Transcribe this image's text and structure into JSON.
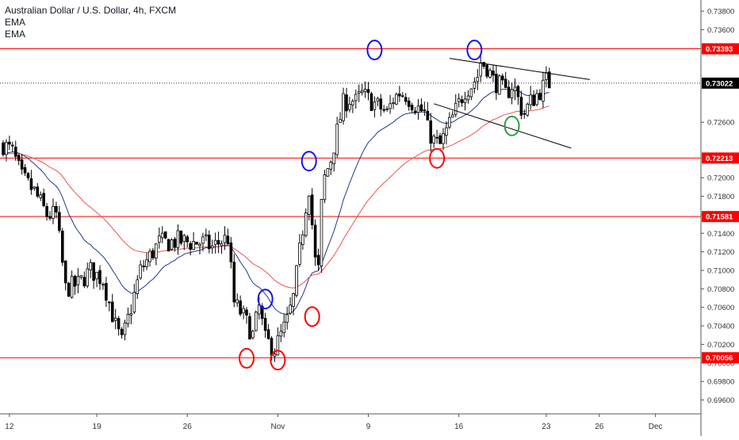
{
  "legend": {
    "title": "Australian Dollar / U.S. Dollar, 4h, FXCM",
    "indicator_1": "EMA",
    "indicator_2": "EMA"
  },
  "colors": {
    "bull": "#000000",
    "bear": "#000000",
    "ema_fast": "#1e3a8a",
    "ema_slow": "#ef5350",
    "level_line": "#ff0000",
    "level_label_bg": "#ff0000",
    "current_label_bg": "#000000",
    "grid": "#ffffff",
    "marker_blue": "#1010ff",
    "marker_red": "#ff0000",
    "marker_green": "#2e9e3e",
    "channel": "#000000"
  },
  "chart_data": {
    "type": "candlestick",
    "instrument": "Australian Dollar / U.S. Dollar",
    "timeframe": "4h",
    "source": "FXCM",
    "ylim": [
      0.6945,
      0.7392
    ],
    "y_ticks": [
      "0.73800",
      "0.73600",
      "0.72600",
      "0.72000",
      "0.71800",
      "0.71600",
      "0.71400",
      "0.71200",
      "0.71000",
      "0.70800",
      "0.70600",
      "0.70400",
      "0.70200",
      "0.70000",
      "0.69800",
      "0.69600"
    ],
    "x_ticks": [
      "12",
      "19",
      "26",
      "Nov",
      "9",
      "16",
      "23",
      "26",
      "Dec"
    ],
    "levels": [
      {
        "price": 0.73393,
        "label": "0.73393"
      },
      {
        "price": 0.72213,
        "label": "0.72213"
      },
      {
        "price": 0.71581,
        "label": "0.71581"
      },
      {
        "price": 0.70056,
        "label": "0.70056"
      }
    ],
    "current_price": {
      "price": 0.73022,
      "label": "0.73022"
    },
    "anchors": [
      [
        0,
        0.7236
      ],
      [
        3,
        0.7228
      ],
      [
        6,
        0.72
      ],
      [
        10,
        0.7185
      ],
      [
        14,
        0.716
      ],
      [
        17,
        0.716
      ],
      [
        20,
        0.708
      ],
      [
        24,
        0.7085
      ],
      [
        28,
        0.71
      ],
      [
        32,
        0.709
      ],
      [
        36,
        0.704
      ],
      [
        38,
        0.7022
      ],
      [
        41,
        0.706
      ],
      [
        44,
        0.71
      ],
      [
        47,
        0.7115
      ],
      [
        50,
        0.713
      ],
      [
        53,
        0.713
      ],
      [
        56,
        0.7132
      ],
      [
        60,
        0.713
      ],
      [
        64,
        0.713
      ],
      [
        67,
        0.7125
      ],
      [
        70,
        0.7132
      ],
      [
        72,
        0.7135
      ],
      [
        74,
        0.7065
      ],
      [
        77,
        0.705
      ],
      [
        80,
        0.703
      ],
      [
        82,
        0.706
      ],
      [
        84,
        0.7025
      ],
      [
        87,
        0.7015
      ],
      [
        89,
        0.703
      ],
      [
        91,
        0.7045
      ],
      [
        93,
        0.707
      ],
      [
        95,
        0.712
      ],
      [
        97,
        0.717
      ],
      [
        98,
        0.719
      ],
      [
        99,
        0.715
      ],
      [
        100,
        0.711
      ],
      [
        101,
        0.71
      ],
      [
        102,
        0.717
      ],
      [
        103,
        0.72
      ],
      [
        105,
        0.722
      ],
      [
        107,
        0.725
      ],
      [
        109,
        0.728
      ],
      [
        111,
        0.7285
      ],
      [
        113,
        0.7282
      ],
      [
        115,
        0.729
      ],
      [
        117,
        0.7285
      ],
      [
        119,
        0.728
      ],
      [
        121,
        0.7275
      ],
      [
        123,
        0.727
      ],
      [
        125,
        0.7285
      ],
      [
        127,
        0.7292
      ],
      [
        129,
        0.729
      ],
      [
        131,
        0.7282
      ],
      [
        133,
        0.7275
      ],
      [
        135,
        0.727
      ],
      [
        136,
        0.7252
      ],
      [
        138,
        0.724
      ],
      [
        140,
        0.7235
      ],
      [
        142,
        0.725
      ],
      [
        144,
        0.7265
      ],
      [
        146,
        0.728
      ],
      [
        148,
        0.7295
      ],
      [
        150,
        0.73
      ],
      [
        152,
        0.731
      ],
      [
        153,
        0.7325
      ],
      [
        155,
        0.732
      ],
      [
        157,
        0.7305
      ],
      [
        159,
        0.73
      ],
      [
        161,
        0.729
      ],
      [
        163,
        0.73
      ],
      [
        164,
        0.7295
      ],
      [
        166,
        0.7275
      ],
      [
        167,
        0.727
      ],
      [
        169,
        0.7282
      ],
      [
        171,
        0.729
      ],
      [
        173,
        0.7298
      ],
      [
        174,
        0.7305
      ],
      [
        175,
        0.7302
      ]
    ],
    "ema_fast_period": 20,
    "ema_slow_period": 50,
    "channel_upper": [
      [
        0.7329,
        143
      ],
      [
        0.7306,
        188
      ]
    ],
    "channel_lower": [
      [
        0.728,
        138
      ],
      [
        0.7232,
        182
      ]
    ],
    "markers": [
      {
        "color": "blue",
        "bar": 98,
        "price": 0.7218
      },
      {
        "color": "blue",
        "bar": 119,
        "price": 0.7338
      },
      {
        "color": "blue",
        "bar": 151,
        "price": 0.7338
      },
      {
        "color": "blue",
        "bar": 84,
        "price": 0.7069
      },
      {
        "color": "red",
        "bar": 78,
        "price": 0.7005
      },
      {
        "color": "red",
        "bar": 88,
        "price": 0.7003
      },
      {
        "color": "red",
        "bar": 99,
        "price": 0.705
      },
      {
        "color": "red",
        "bar": 139,
        "price": 0.7221
      },
      {
        "color": "green",
        "bar": 163,
        "price": 0.7256
      }
    ]
  }
}
